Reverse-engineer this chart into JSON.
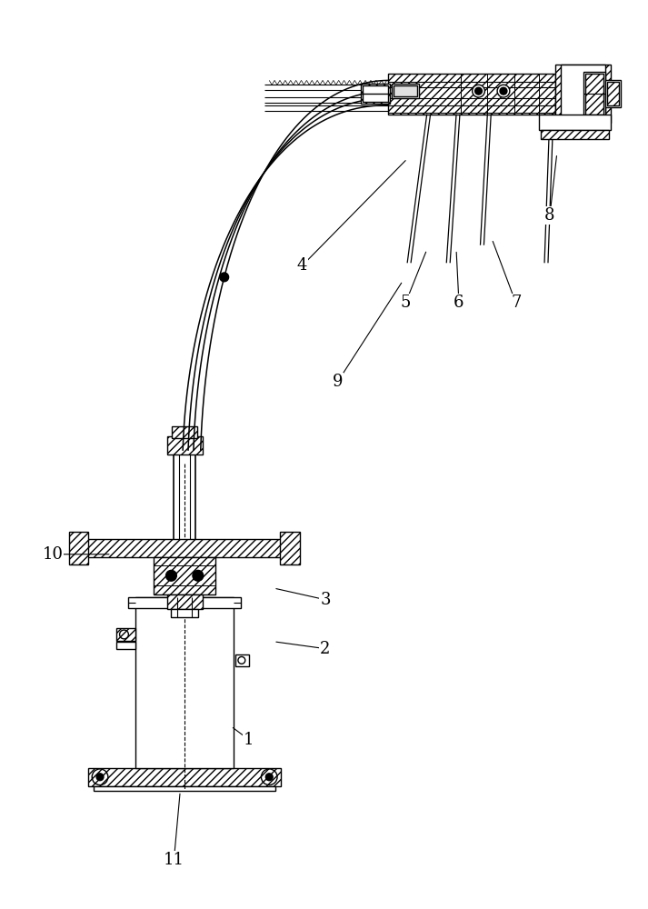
{
  "bg_color": "#ffffff",
  "lc": "#000000",
  "annotations": [
    [
      "1",
      272,
      820,
      252,
      805
    ],
    [
      "2",
      358,
      718,
      300,
      710
    ],
    [
      "3",
      358,
      663,
      300,
      650
    ],
    [
      "4",
      332,
      288,
      450,
      168
    ],
    [
      "5",
      448,
      330,
      472,
      270
    ],
    [
      "6",
      508,
      330,
      505,
      270
    ],
    [
      "7",
      572,
      330,
      545,
      258
    ],
    [
      "8",
      610,
      232,
      618,
      162
    ],
    [
      "9",
      372,
      418,
      445,
      305
    ],
    [
      "10",
      52,
      612,
      118,
      612
    ],
    [
      "11",
      188,
      955,
      195,
      878
    ]
  ]
}
